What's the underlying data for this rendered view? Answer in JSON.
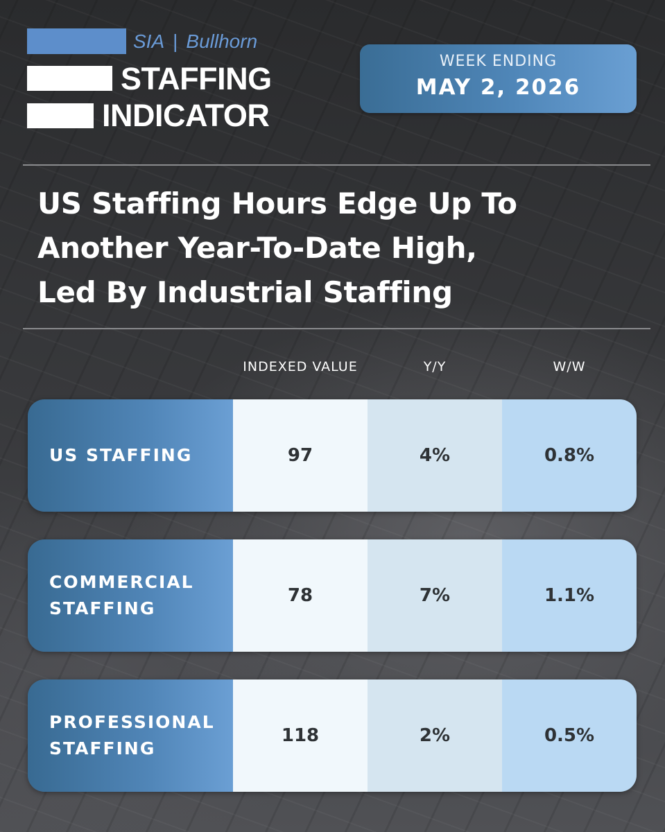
{
  "brand": {
    "sia": "SIA",
    "separator": "|",
    "bullhorn": "Bullhorn",
    "line1": "STAFFING",
    "line2": "INDICATOR"
  },
  "week": {
    "label": "WEEK ENDING",
    "date": "MAY 2, 2026"
  },
  "headline": {
    "line1": "US Staffing Hours Edge Up To",
    "line2": "Another Year-To-Date High,",
    "line3": "Led By Industrial Staffing"
  },
  "table": {
    "columns": [
      "INDEXED VALUE",
      "Y/Y",
      "W/W"
    ],
    "rows": [
      {
        "label": "US STAFFING",
        "indexed_value": "97",
        "yy": "4%",
        "ww": "0.8%"
      },
      {
        "label": "COMMERCIAL\nSTAFFING",
        "indexed_value": "78",
        "yy": "7%",
        "ww": "1.1%"
      },
      {
        "label": "PROFESSIONAL\nSTAFFING",
        "indexed_value": "118",
        "yy": "2%",
        "ww": "0.5%"
      }
    ]
  },
  "colors": {
    "accent_blue": "#5d8ecb",
    "background": "#2e2f31",
    "cell_light": "#f1f8fc",
    "cell_mid": "#d5e5f0",
    "cell_blue": "#bad9f3"
  }
}
